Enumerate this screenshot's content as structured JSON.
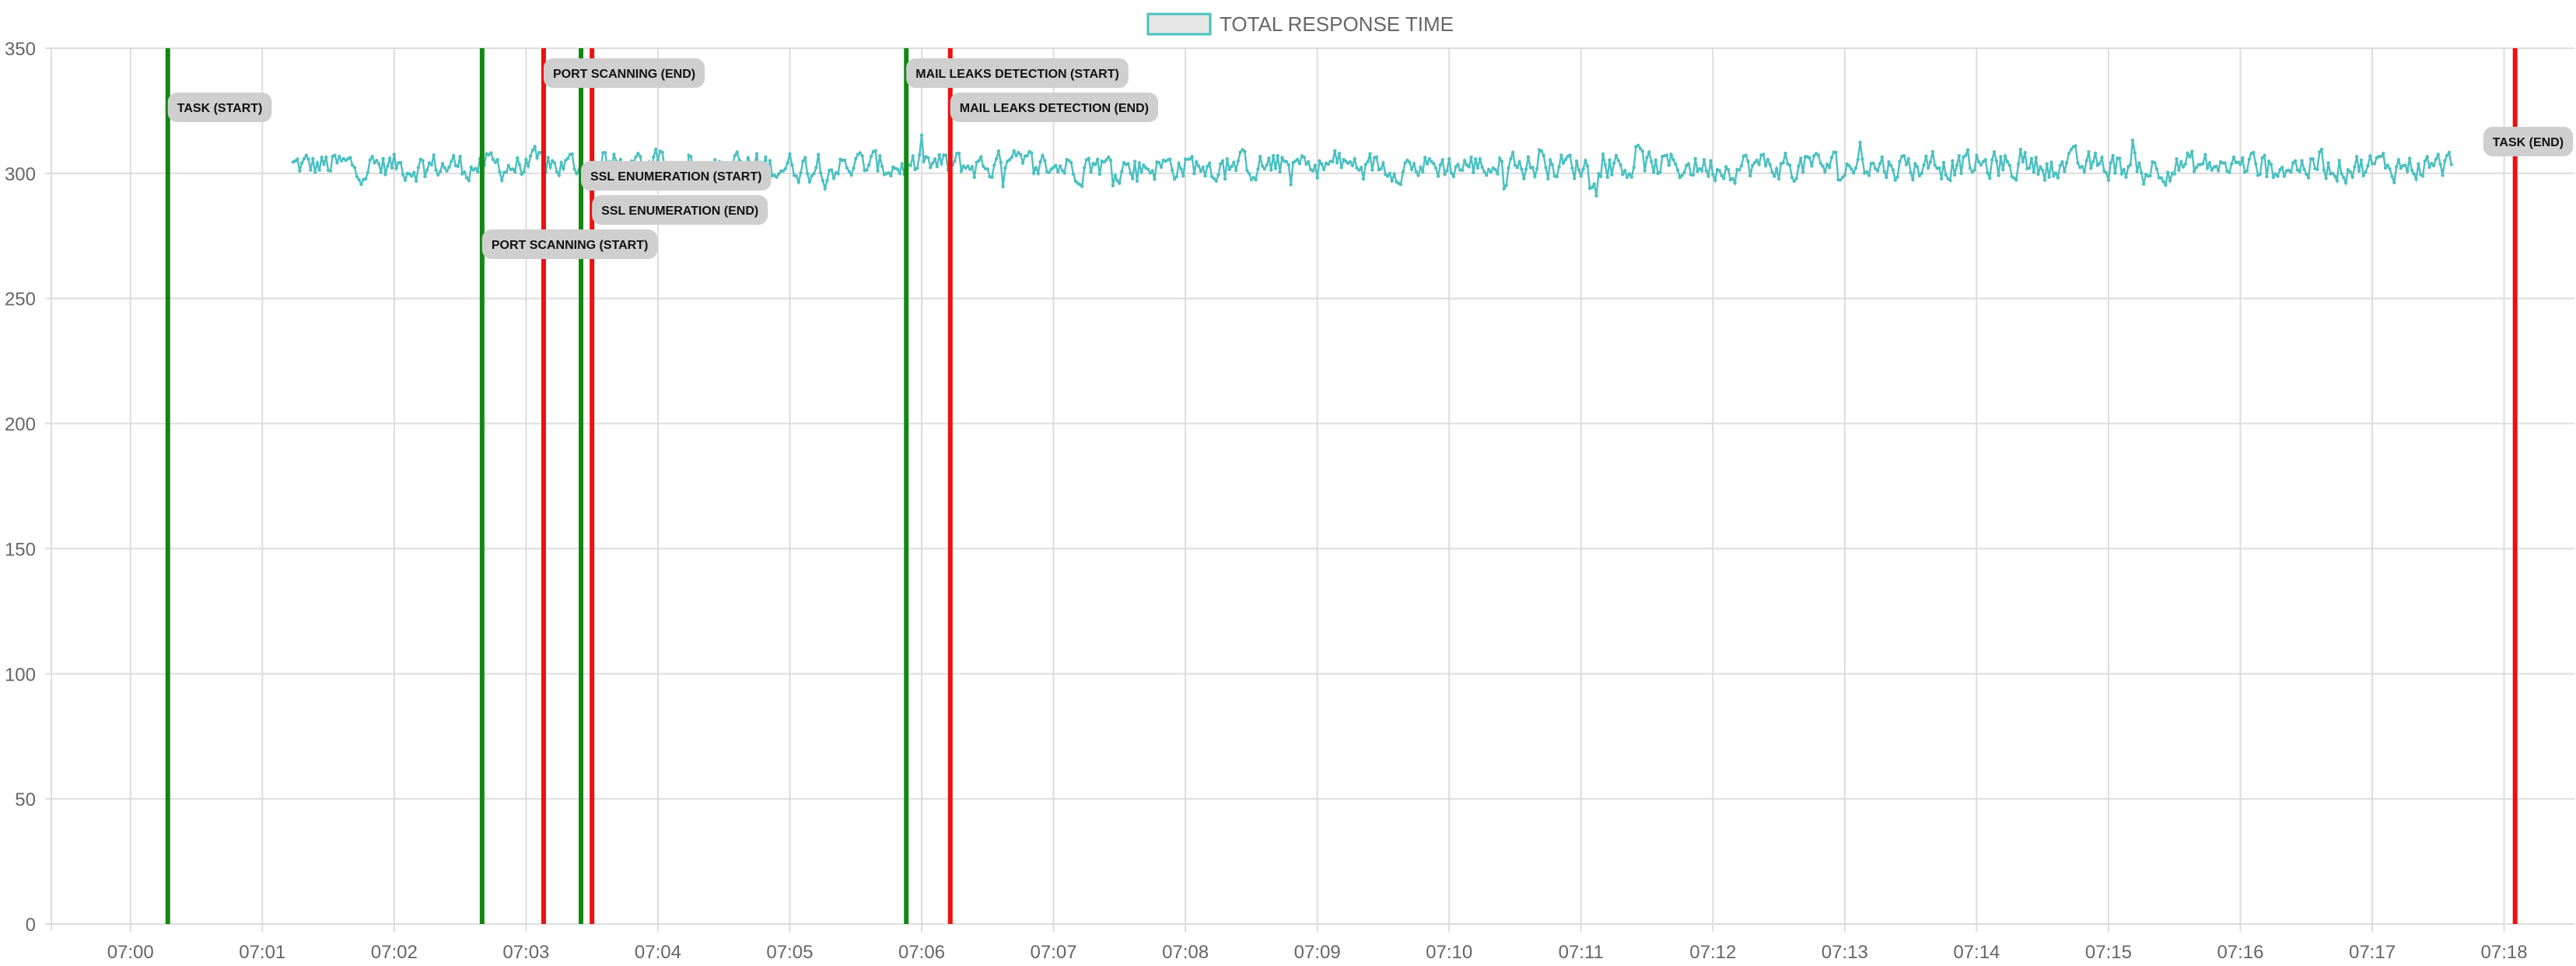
{
  "legend": {
    "label": "TOTAL RESPONSE TIME"
  },
  "colors": {
    "series": "#4bc0c0",
    "series_fill": "#e6e6e6",
    "start": "#118811",
    "end": "#ee1111",
    "grid": "#dddddd",
    "label_bg": "#cfcfcf"
  },
  "chart_data": {
    "type": "line",
    "title": "",
    "xlabel": "",
    "ylabel": "",
    "ylim": [
      0,
      350
    ],
    "yticks": [
      0,
      50,
      100,
      150,
      200,
      250,
      300,
      350
    ],
    "x_tick_labels": [
      "07:00",
      "07:01",
      "07:02",
      "07:03",
      "07:04",
      "07:05",
      "07:06",
      "07:07",
      "07:08",
      "07:09",
      "07:10",
      "07:11",
      "07:12",
      "07:13",
      "07:14",
      "07:15",
      "07:16",
      "07:17",
      "07:18"
    ],
    "xlim_seconds_after_0700": [
      -36,
      1112
    ],
    "grid": true,
    "legend_position": "top-center",
    "series": [
      {
        "name": "TOTAL RESPONSE TIME",
        "x_start": "07:01:14",
        "x_end": "07:17:36",
        "sample_interval_s": 1,
        "mean": 303,
        "min": 291,
        "max": 322,
        "note_values": "response time in ms, oscillating around ~303"
      }
    ],
    "annotations": [
      {
        "label": "TASK (START)",
        "time": "07:00:17",
        "kind": "start",
        "label_row": 2
      },
      {
        "label": "PORT SCANNING (START)",
        "time": "07:02:40",
        "kind": "start",
        "label_row": 6
      },
      {
        "label": "PORT SCANNING (END)",
        "time": "07:03:08",
        "kind": "end",
        "label_row": 1
      },
      {
        "label": "SSL ENUMERATION (START)",
        "time": "07:03:25",
        "kind": "start",
        "label_row": 4
      },
      {
        "label": "SSL ENUMERATION (END)",
        "time": "07:03:30",
        "kind": "end",
        "label_row": 5
      },
      {
        "label": "MAIL LEAKS DETECTION (START)",
        "time": "07:05:53",
        "kind": "start",
        "label_row": 1
      },
      {
        "label": "MAIL LEAKS DETECTION (END)",
        "time": "07:06:13",
        "kind": "end",
        "label_row": 2
      },
      {
        "label": "TASK (END)",
        "time": "07:18:05",
        "kind": "end",
        "label_row": 3
      }
    ]
  }
}
